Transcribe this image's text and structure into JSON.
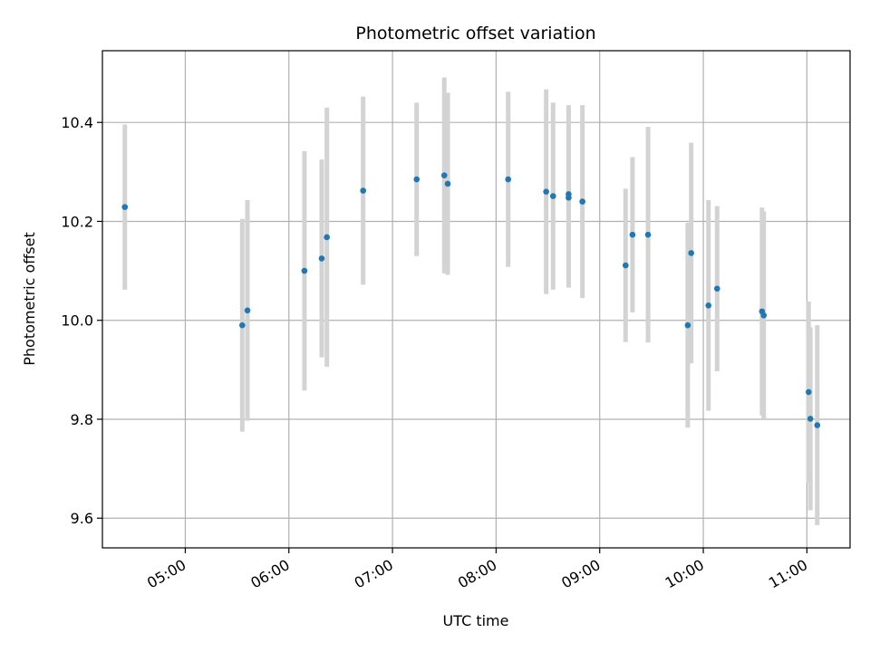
{
  "chart_data": {
    "type": "scatter",
    "title": "Photometric offset variation",
    "xlabel": "UTC time",
    "ylabel": "Photometric offset",
    "x_tick_labels": [
      "05:00",
      "06:00",
      "07:00",
      "08:00",
      "09:00",
      "10:00",
      "11:00"
    ],
    "x_ticks": [
      "05:00",
      "06:00",
      "07:00",
      "08:00",
      "09:00",
      "10:00",
      "11:00"
    ],
    "y_ticks": [
      9.6,
      9.8,
      10.0,
      10.2,
      10.4
    ],
    "y_tick_labels": [
      "9.6",
      "9.8",
      "10.0",
      "10.2",
      "10.4"
    ],
    "xlim": [
      "04:12",
      "11:25"
    ],
    "ylim": [
      9.54,
      10.545
    ],
    "grid": true,
    "marker_color": "#1f77b4",
    "errorbar_color": "#d3d3d3",
    "points": [
      {
        "x": "04:25",
        "y": 10.229,
        "err": 0.167
      },
      {
        "x": "05:33",
        "y": 9.99,
        "err": 0.215
      },
      {
        "x": "05:36",
        "y": 10.02,
        "err": 0.223
      },
      {
        "x": "06:09",
        "y": 10.1,
        "err": 0.242
      },
      {
        "x": "06:19",
        "y": 10.125,
        "err": 0.2
      },
      {
        "x": "06:22",
        "y": 10.168,
        "err": 0.262
      },
      {
        "x": "06:43",
        "y": 10.262,
        "err": 0.19
      },
      {
        "x": "07:14",
        "y": 10.285,
        "err": 0.155
      },
      {
        "x": "07:30",
        "y": 10.293,
        "err": 0.198
      },
      {
        "x": "07:32",
        "y": 10.276,
        "err": 0.184
      },
      {
        "x": "08:07",
        "y": 10.285,
        "err": 0.177
      },
      {
        "x": "08:29",
        "y": 10.26,
        "err": 0.207
      },
      {
        "x": "08:33",
        "y": 10.251,
        "err": 0.189
      },
      {
        "x": "08:42",
        "y": 10.255,
        "err": 0.18
      },
      {
        "x": "08:42",
        "y": 10.248,
        "err": 0.182
      },
      {
        "x": "08:50",
        "y": 10.24,
        "err": 0.195
      },
      {
        "x": "09:15",
        "y": 10.111,
        "err": 0.155
      },
      {
        "x": "09:19",
        "y": 10.173,
        "err": 0.157
      },
      {
        "x": "09:28",
        "y": 10.173,
        "err": 0.218
      },
      {
        "x": "09:51",
        "y": 9.99,
        "err": 0.207
      },
      {
        "x": "09:53",
        "y": 10.136,
        "err": 0.223
      },
      {
        "x": "10:03",
        "y": 10.03,
        "err": 0.213
      },
      {
        "x": "10:08",
        "y": 10.064,
        "err": 0.167
      },
      {
        "x": "10:34",
        "y": 10.018,
        "err": 0.21
      },
      {
        "x": "10:35",
        "y": 10.01,
        "err": 0.21
      },
      {
        "x": "11:01",
        "y": 9.855,
        "err": 0.183
      },
      {
        "x": "11:02",
        "y": 9.801,
        "err": 0.185
      },
      {
        "x": "11:06",
        "y": 9.788,
        "err": 0.202
      }
    ]
  }
}
